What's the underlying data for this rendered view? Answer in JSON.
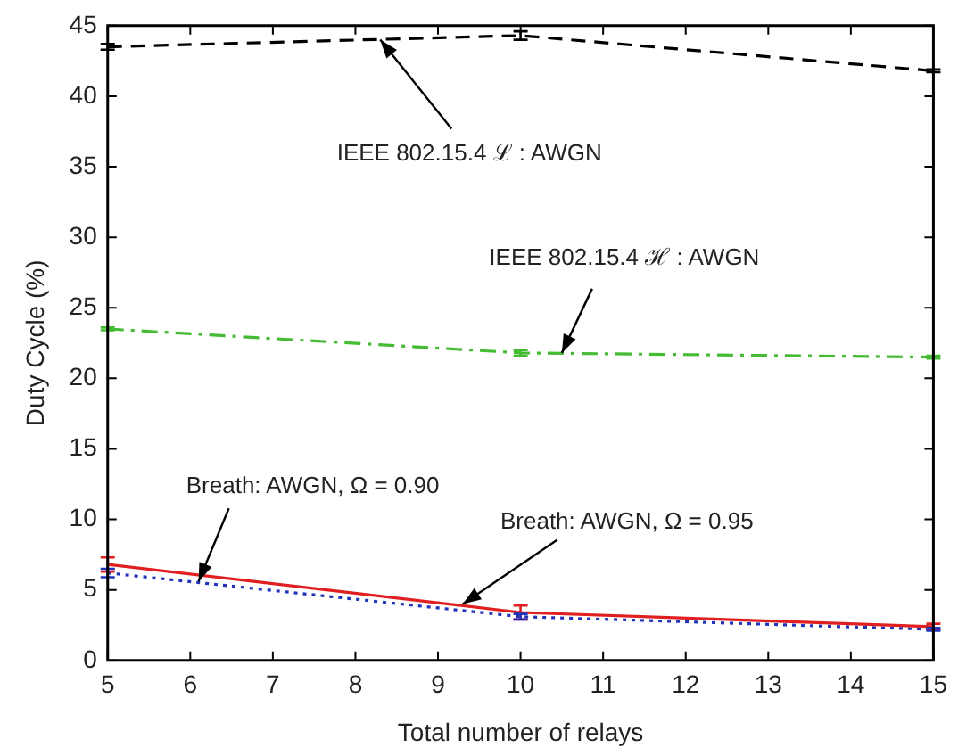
{
  "chart_data": {
    "type": "line",
    "xlabel": "Total number of relays",
    "ylabel": "Duty Cycle (%)",
    "x": [
      5,
      10,
      15
    ],
    "series": [
      {
        "color": "#000000",
        "line_style": "dashed",
        "values": [
          43.5,
          44.3,
          41.8
        ],
        "errors": [
          0.2,
          0.3,
          0.1
        ]
      },
      {
        "color": "#44bb33",
        "line_style": "dashdot",
        "values": [
          23.5,
          21.8,
          21.5
        ],
        "errors": [
          0.1,
          0.2,
          0.1
        ]
      },
      {
        "color": "#e02020",
        "line_style": "solid",
        "values": [
          6.8,
          3.4,
          2.4
        ],
        "errors": [
          0.5,
          0.5,
          0.2
        ]
      },
      {
        "color": "#2233bb",
        "line_style": "dotted",
        "values": [
          6.2,
          3.1,
          2.2
        ],
        "errors": [
          0.3,
          0.2,
          0.1
        ]
      }
    ],
    "xlim": [
      5,
      15
    ],
    "xticks": [
      5,
      6,
      7,
      8,
      9,
      10,
      11,
      12,
      13,
      14,
      15
    ],
    "ylim": [
      0,
      45
    ],
    "yticks": [
      0,
      5,
      10,
      15,
      20,
      25,
      30,
      35,
      40,
      45
    ],
    "grid": false,
    "legend": false,
    "annotations": [
      {
        "text": "IEEE 802.15.4 ℒ : AWGN",
        "x": 8.3,
        "y": 44.0
      },
      {
        "text": "IEEE 802.15.4 ℋ : AWGN",
        "x": 10.5,
        "y": 21.8
      },
      {
        "text": "Breath: AWGN, Ω = 0.90",
        "x": 6.1,
        "y": 5.6
      },
      {
        "text": "Breath: AWGN, Ω = 0.95",
        "x": 9.3,
        "y": 4.0
      }
    ]
  }
}
